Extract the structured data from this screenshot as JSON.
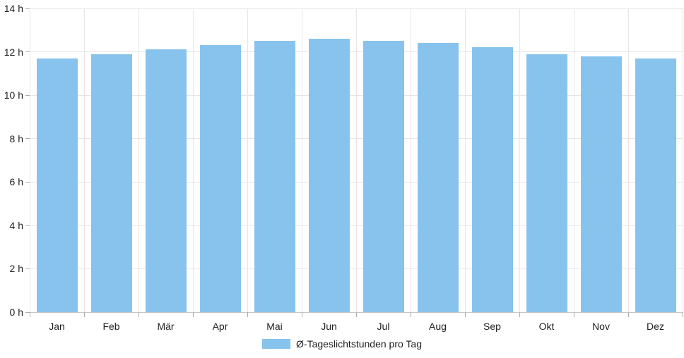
{
  "chart_data": {
    "type": "bar",
    "categories": [
      "Jan",
      "Feb",
      "Mär",
      "Apr",
      "Mai",
      "Jun",
      "Jul",
      "Aug",
      "Sep",
      "Okt",
      "Nov",
      "Dez"
    ],
    "values": [
      11.7,
      11.9,
      12.1,
      12.3,
      12.5,
      12.6,
      12.5,
      12.4,
      12.2,
      11.9,
      11.8,
      11.7
    ],
    "series_name": "Ø-Tageslichtstunden pro Tag",
    "title": "",
    "xlabel": "",
    "ylabel": "",
    "ylim": [
      0,
      14
    ],
    "ytick_step": 2,
    "ytick_suffix": " h",
    "grid": true,
    "legend_position": "bottom",
    "bar_color": "#87C3EC"
  },
  "legend": {
    "label": "Ø-Tageslichtstunden pro Tag"
  },
  "colors": {
    "bar": "#87C3EC",
    "grid": "#E6E6E6",
    "axis": "#C6C6C6",
    "tick": "#ACACAC",
    "text": "#1F1F1F"
  }
}
